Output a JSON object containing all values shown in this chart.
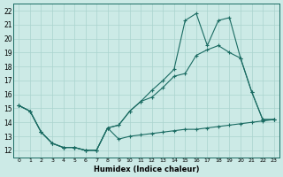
{
  "xlabel": "Humidex (Indice chaleur)",
  "bg_color": "#cceae6",
  "grid_color": "#aad4cf",
  "line_color": "#1a6b62",
  "xlim": [
    -0.5,
    23.5
  ],
  "ylim": [
    11.5,
    22.5
  ],
  "yticks": [
    12,
    13,
    14,
    15,
    16,
    17,
    18,
    19,
    20,
    21,
    22
  ],
  "xticks": [
    0,
    1,
    2,
    3,
    4,
    5,
    6,
    7,
    8,
    9,
    10,
    11,
    12,
    13,
    14,
    15,
    16,
    17,
    18,
    19,
    20,
    21,
    22,
    23
  ],
  "line1_x": [
    0,
    1,
    2,
    3,
    4,
    5,
    6,
    7,
    8,
    9,
    10,
    11,
    12,
    13,
    14,
    15,
    16,
    17,
    18,
    19,
    20,
    21,
    22,
    23
  ],
  "line1_y": [
    15.2,
    14.8,
    13.3,
    12.5,
    12.2,
    12.2,
    12.0,
    12.0,
    13.6,
    12.8,
    13.0,
    13.1,
    13.2,
    13.3,
    13.4,
    13.5,
    13.5,
    13.6,
    13.7,
    13.8,
    13.9,
    14.0,
    14.1,
    14.2
  ],
  "line2_x": [
    0,
    1,
    2,
    3,
    4,
    5,
    6,
    7,
    8,
    9,
    10,
    11,
    12,
    13,
    14,
    15,
    16,
    17,
    18,
    19,
    20,
    21,
    22,
    23
  ],
  "line2_y": [
    15.2,
    14.8,
    13.3,
    12.5,
    12.2,
    12.2,
    12.0,
    12.0,
    13.6,
    13.8,
    14.8,
    15.5,
    15.8,
    16.5,
    17.3,
    17.5,
    18.8,
    19.2,
    19.5,
    19.0,
    18.6,
    16.2,
    14.2,
    14.2
  ],
  "line3_x": [
    0,
    1,
    2,
    3,
    4,
    5,
    6,
    7,
    8,
    9,
    10,
    11,
    12,
    13,
    14,
    15,
    16,
    17,
    18,
    19,
    20,
    21,
    22,
    23
  ],
  "line3_y": [
    15.2,
    14.8,
    13.3,
    12.5,
    12.2,
    12.2,
    12.0,
    12.0,
    13.6,
    13.8,
    14.8,
    15.5,
    16.3,
    17.0,
    17.8,
    21.3,
    21.8,
    19.5,
    21.3,
    21.5,
    18.6,
    16.2,
    14.2,
    14.2
  ]
}
